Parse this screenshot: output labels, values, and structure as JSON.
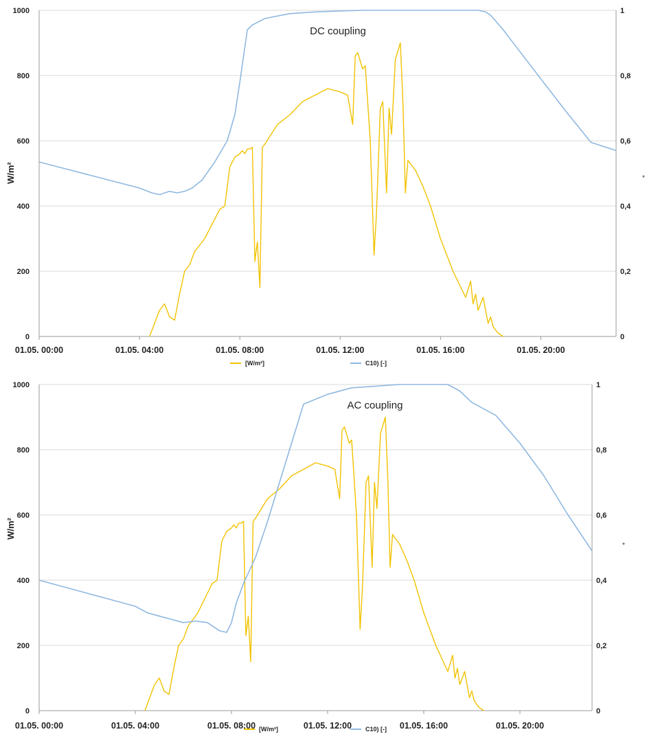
{
  "chart_data": [
    {
      "type": "line",
      "title": "DC coupling",
      "ylabel": "W/m²",
      "ylabel_right": "*",
      "ylim": [
        0,
        1000
      ],
      "ylim_right": [
        0,
        1
      ],
      "yticks": [
        "0",
        "200",
        "400",
        "600",
        "800",
        "1000"
      ],
      "yticks_right": [
        "0",
        "0,2",
        "0,4",
        "0,6",
        "0,8",
        "1"
      ],
      "xticks": [
        "01.05. 00:00",
        "01.05. 04:00",
        "01.05. 08:00",
        "01.05. 12:00",
        "01.05. 16:00",
        "01.05. 20:00"
      ],
      "xlim_hours": [
        0,
        23
      ],
      "grid": true,
      "legend_position": "bottom",
      "colors": {
        "irradiance": "#f2c200",
        "soc": "#8fb8e0"
      },
      "series": [
        {
          "name": "[W/m²]",
          "axis": "left",
          "x": [
            4.4,
            4.6,
            4.8,
            5.0,
            5.2,
            5.4,
            5.6,
            5.8,
            6.0,
            6.2,
            6.4,
            6.6,
            6.8,
            7.0,
            7.2,
            7.4,
            7.6,
            7.8,
            8.0,
            8.1,
            8.2,
            8.3,
            8.4,
            8.5,
            8.6,
            8.7,
            8.8,
            8.9,
            9.0,
            9.5,
            10.0,
            10.5,
            11.0,
            11.5,
            12.0,
            12.3,
            12.5,
            12.6,
            12.7,
            12.9,
            13.0,
            13.2,
            13.35,
            13.45,
            13.6,
            13.7,
            13.85,
            13.95,
            14.05,
            14.2,
            14.4,
            14.5,
            14.6,
            14.7,
            14.8,
            14.9,
            15.0,
            15.3,
            15.6,
            16.0,
            16.5,
            17.0,
            17.2,
            17.3,
            17.4,
            17.5,
            17.7,
            17.9,
            18.0,
            18.1,
            18.3,
            18.5
          ],
          "values": [
            0,
            40,
            80,
            100,
            60,
            50,
            130,
            200,
            220,
            260,
            280,
            300,
            330,
            360,
            390,
            400,
            520,
            550,
            560,
            570,
            560,
            575,
            575,
            580,
            230,
            290,
            150,
            580,
            590,
            650,
            680,
            720,
            740,
            760,
            750,
            740,
            650,
            860,
            870,
            820,
            830,
            600,
            250,
            380,
            700,
            720,
            440,
            700,
            620,
            850,
            900,
            720,
            440,
            540,
            530,
            520,
            510,
            460,
            400,
            300,
            200,
            120,
            170,
            100,
            130,
            80,
            120,
            40,
            60,
            30,
            10,
            0
          ]
        },
        {
          "name": "C10) [-]",
          "axis": "right",
          "x": [
            0,
            1,
            2,
            3,
            4,
            4.5,
            4.8,
            5.0,
            5.2,
            5.5,
            5.8,
            6.1,
            6.5,
            7.0,
            7.5,
            7.8,
            8.0,
            8.3,
            8.5,
            9.0,
            10.0,
            11.0,
            12.0,
            13.0,
            14.0,
            15.0,
            16.0,
            17.0,
            17.5,
            17.8,
            18.0,
            18.5,
            19.0,
            20.0,
            21.0,
            22.0,
            23.0
          ],
          "values": [
            0.535,
            0.515,
            0.495,
            0.475,
            0.455,
            0.44,
            0.435,
            0.44,
            0.445,
            0.44,
            0.445,
            0.455,
            0.48,
            0.535,
            0.6,
            0.68,
            0.78,
            0.94,
            0.955,
            0.975,
            0.99,
            0.995,
            0.998,
            1.0,
            1.0,
            1.0,
            1.0,
            1.0,
            1.0,
            0.995,
            0.985,
            0.94,
            0.89,
            0.79,
            0.69,
            0.595,
            0.57
          ]
        }
      ]
    },
    {
      "type": "line",
      "title": "AC coupling",
      "ylabel": "W/m²",
      "ylabel_right": "*",
      "ylim": [
        0,
        1000
      ],
      "ylim_right": [
        0,
        1
      ],
      "yticks": [
        "0",
        "200",
        "400",
        "600",
        "800",
        "1000"
      ],
      "yticks_right": [
        "0",
        "0,2",
        "0,4",
        "0,6",
        "0,8",
        "1"
      ],
      "xticks": [
        "01.05. 00:00",
        "01.05. 04:00",
        "01.05. 08:00",
        "01.05. 12:00",
        "01.05. 16:00",
        "01.05. 20:00"
      ],
      "xlim_hours": [
        0,
        23
      ],
      "grid": true,
      "legend_position": "bottom",
      "colors": {
        "irradiance": "#f2c200",
        "soc": "#8fb8e0"
      },
      "series": [
        {
          "name": "[W/m²]",
          "axis": "left",
          "x": [
            4.4,
            4.6,
            4.8,
            5.0,
            5.2,
            5.4,
            5.6,
            5.8,
            6.0,
            6.2,
            6.4,
            6.6,
            6.8,
            7.0,
            7.2,
            7.4,
            7.6,
            7.8,
            8.0,
            8.1,
            8.2,
            8.3,
            8.4,
            8.5,
            8.6,
            8.7,
            8.8,
            8.9,
            9.0,
            9.5,
            10.0,
            10.5,
            11.0,
            11.5,
            12.0,
            12.3,
            12.5,
            12.6,
            12.7,
            12.9,
            13.0,
            13.2,
            13.35,
            13.45,
            13.6,
            13.7,
            13.85,
            13.95,
            14.05,
            14.2,
            14.4,
            14.5,
            14.6,
            14.7,
            14.8,
            14.9,
            15.0,
            15.3,
            15.6,
            16.0,
            16.5,
            17.0,
            17.2,
            17.3,
            17.4,
            17.5,
            17.7,
            17.9,
            18.0,
            18.1,
            18.3,
            18.5
          ],
          "values": [
            0,
            40,
            80,
            100,
            60,
            50,
            130,
            200,
            220,
            260,
            280,
            300,
            330,
            360,
            390,
            400,
            520,
            550,
            560,
            570,
            560,
            575,
            575,
            580,
            230,
            290,
            150,
            580,
            590,
            650,
            680,
            720,
            740,
            760,
            750,
            740,
            650,
            860,
            870,
            820,
            830,
            600,
            250,
            380,
            700,
            720,
            440,
            700,
            620,
            850,
            900,
            720,
            440,
            540,
            530,
            520,
            510,
            460,
            400,
            300,
            200,
            120,
            170,
            100,
            130,
            80,
            120,
            40,
            60,
            30,
            10,
            0
          ]
        },
        {
          "name": "C10) [-]",
          "axis": "right",
          "x": [
            0,
            1,
            2,
            3,
            4,
            4.5,
            5.0,
            5.5,
            6.0,
            6.5,
            7.0,
            7.5,
            7.8,
            8.0,
            8.2,
            8.5,
            9.0,
            9.5,
            10.0,
            10.5,
            11.0,
            12.0,
            13.0,
            14.0,
            15.0,
            16.0,
            17.0,
            17.5,
            18.0,
            19.0,
            20.0,
            21.0,
            22.0,
            23.0
          ],
          "values": [
            0.4,
            0.38,
            0.36,
            0.34,
            0.32,
            0.3,
            0.29,
            0.28,
            0.27,
            0.275,
            0.27,
            0.245,
            0.24,
            0.27,
            0.33,
            0.39,
            0.47,
            0.58,
            0.7,
            0.82,
            0.94,
            0.97,
            0.99,
            0.995,
            1.0,
            1.0,
            1.0,
            0.98,
            0.945,
            0.905,
            0.82,
            0.72,
            0.6,
            0.49
          ]
        }
      ]
    }
  ]
}
